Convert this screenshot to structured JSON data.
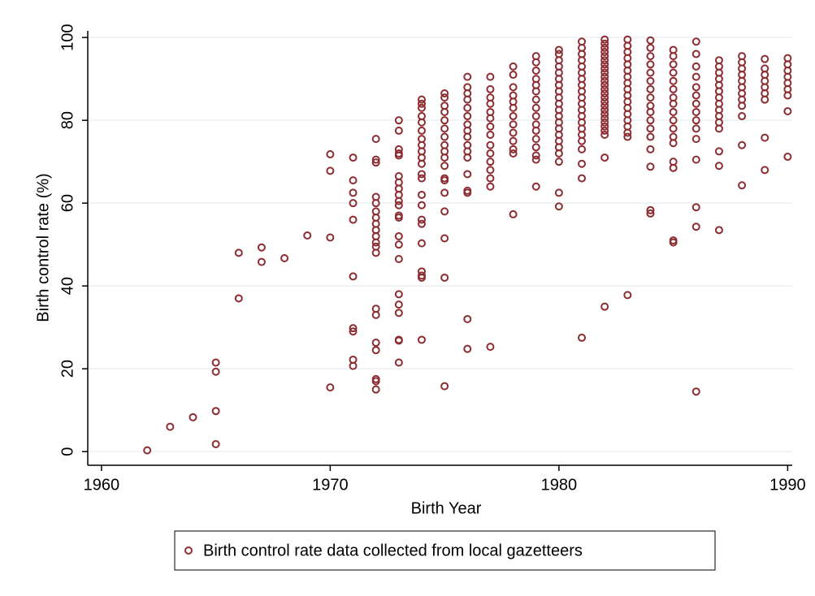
{
  "chart_data": {
    "type": "scatter",
    "x_label": "Birth Year",
    "y_label": "Birth control rate (%)",
    "xlim": [
      1959.4,
      1990.2
    ],
    "ylim": [
      -3.3,
      101.6
    ],
    "xticks": [
      1960,
      1970,
      1980,
      1990
    ],
    "yticks": [
      0,
      20,
      40,
      60,
      80,
      100
    ],
    "grid": true,
    "legend": "bottom",
    "x": [
      1962,
      1963,
      1964,
      1965,
      1965,
      1965,
      1965,
      1966,
      1966,
      1967,
      1967,
      1968,
      1969,
      1970,
      1970,
      1970,
      1970,
      1971,
      1971,
      1971,
      1971,
      1971,
      1971,
      1971,
      1971,
      1971,
      1971,
      1972,
      1972,
      1972,
      1972,
      1972,
      1972,
      1972,
      1972,
      1972,
      1972,
      1972,
      1972,
      1972,
      1972,
      1972,
      1972,
      1972,
      1972,
      1972,
      1972,
      1973,
      1973,
      1973,
      1973,
      1973,
      1973,
      1973,
      1973,
      1973,
      1973,
      1973,
      1973,
      1973,
      1973,
      1973,
      1973,
      1973,
      1973,
      1973,
      1973,
      1973,
      1973,
      1974,
      1974,
      1974,
      1974,
      1974,
      1974,
      1974,
      1974,
      1974,
      1974,
      1974,
      1974,
      1974,
      1974,
      1974,
      1974,
      1974,
      1974,
      1974,
      1974,
      1974,
      1974,
      1975,
      1975,
      1975,
      1975,
      1975,
      1975,
      1975,
      1975,
      1975,
      1975,
      1975,
      1975,
      1975,
      1975,
      1975,
      1975,
      1975,
      1975,
      1976,
      1976,
      1976,
      1976,
      1976,
      1976,
      1976,
      1976,
      1976,
      1976,
      1976,
      1976,
      1976,
      1976,
      1976,
      1976,
      1976,
      1977,
      1977,
      1977,
      1977,
      1977,
      1977,
      1977,
      1977,
      1977,
      1977,
      1977,
      1977,
      1977,
      1977,
      1977,
      1978,
      1978,
      1978,
      1978,
      1978,
      1978,
      1978,
      1978,
      1978,
      1978,
      1978,
      1978,
      1978,
      1979,
      1979,
      1979,
      1979,
      1979,
      1979,
      1979,
      1979,
      1979,
      1979,
      1979,
      1979,
      1979,
      1979,
      1979,
      1979,
      1980,
      1980,
      1980,
      1980,
      1980,
      1980,
      1980,
      1980,
      1980,
      1980,
      1980,
      1980,
      1980,
      1980,
      1980,
      1980,
      1980,
      1980,
      1980,
      1980,
      1980,
      1981,
      1981,
      1981,
      1981,
      1981,
      1981,
      1981,
      1981,
      1981,
      1981,
      1981,
      1981,
      1981,
      1981,
      1981,
      1981,
      1981,
      1981,
      1981,
      1981,
      1981,
      1982,
      1982,
      1982,
      1982,
      1982,
      1982,
      1982,
      1982,
      1982,
      1982,
      1982,
      1982,
      1982,
      1982,
      1982,
      1982,
      1982,
      1982,
      1982,
      1982,
      1982,
      1982,
      1982,
      1982,
      1982,
      1982,
      1983,
      1983,
      1983,
      1983,
      1983,
      1983,
      1983,
      1983,
      1983,
      1983,
      1983,
      1983,
      1983,
      1983,
      1983,
      1983,
      1983,
      1983,
      1984,
      1984,
      1984,
      1984,
      1984,
      1984,
      1984,
      1984,
      1984,
      1984,
      1984,
      1984,
      1984,
      1984,
      1984,
      1984,
      1984,
      1985,
      1985,
      1985,
      1985,
      1985,
      1985,
      1985,
      1985,
      1985,
      1985,
      1985,
      1985,
      1985,
      1985,
      1985,
      1985,
      1985,
      1986,
      1986,
      1986,
      1986,
      1986,
      1986,
      1986,
      1986,
      1986,
      1986,
      1986,
      1986,
      1986,
      1986,
      1986,
      1987,
      1987,
      1987,
      1987,
      1987,
      1987,
      1987,
      1987,
      1987,
      1987,
      1987,
      1987,
      1987,
      1987,
      1987,
      1988,
      1988,
      1988,
      1988,
      1988,
      1988,
      1988,
      1988,
      1988,
      1988,
      1988,
      1988,
      1989,
      1989,
      1989,
      1989,
      1989,
      1989,
      1989,
      1989,
      1989,
      1990,
      1990,
      1990,
      1990,
      1990,
      1990,
      1990,
      1990,
      1990
    ],
    "series": [
      {
        "name": "Birth control rate data collected from local gazetteers",
        "color": "#8c2d32",
        "values": [
          0.3,
          6,
          8.3,
          21.5,
          19.3,
          9.8,
          1.8,
          48,
          37,
          49.3,
          45.8,
          46.7,
          52.2,
          71.8,
          67.8,
          51.7,
          15.5,
          71,
          65.5,
          62.5,
          60,
          56,
          42.3,
          29.8,
          29,
          22.2,
          20.7,
          75.5,
          70.5,
          69.8,
          61.5,
          60,
          58,
          56.5,
          55,
          53.5,
          52,
          50.5,
          49.5,
          48,
          34.5,
          33,
          26.3,
          24.5,
          17.5,
          17,
          15,
          80,
          77.5,
          73,
          72,
          71.5,
          66.5,
          65,
          63.5,
          62,
          60.5,
          59.5,
          57,
          56.5,
          52,
          50,
          46.5,
          38,
          35.5,
          33.5,
          27,
          26.8,
          21.5,
          85,
          84,
          83,
          81,
          79.5,
          77.5,
          75.5,
          74,
          72.5,
          71,
          69.5,
          67,
          66,
          62,
          59.5,
          56,
          55,
          50.3,
          43.5,
          42.5,
          42,
          27,
          86.5,
          85.5,
          83.5,
          82,
          80,
          78,
          76,
          74,
          72.5,
          71,
          69,
          66,
          65.5,
          62.5,
          58,
          51.5,
          42,
          15.8,
          90.5,
          88,
          86.5,
          85,
          83,
          81,
          79,
          77.5,
          76,
          74,
          72.5,
          71,
          67,
          63,
          62.5,
          32,
          24.8,
          90.5,
          87.5,
          85.5,
          84,
          82,
          80.5,
          78.5,
          76.5,
          74,
          72,
          70,
          68,
          66,
          64,
          25.3,
          93,
          91,
          88,
          86,
          84.5,
          83,
          81,
          79,
          77,
          75,
          73,
          72,
          57.3,
          95.5,
          94,
          92,
          90,
          88.5,
          87,
          85,
          83,
          81,
          79,
          77.5,
          75.5,
          73.5,
          71.5,
          70.5,
          64,
          97,
          96,
          94.5,
          93,
          91.5,
          90,
          88.5,
          87,
          85.5,
          84,
          82.5,
          81,
          79.5,
          78,
          76.5,
          75,
          73.5,
          72,
          70,
          62.5,
          59.2,
          99,
          97.5,
          96,
          94.5,
          93,
          91.5,
          90,
          88.5,
          87,
          85.5,
          84,
          82.5,
          81,
          79.5,
          78,
          76.5,
          75,
          73,
          69.5,
          66,
          27.5,
          99.5,
          98.5,
          97.5,
          96.5,
          95.5,
          94.5,
          93.5,
          92.5,
          91.5,
          90.5,
          89.5,
          88.5,
          87.5,
          86.5,
          85.5,
          84.5,
          83.5,
          82.5,
          81.5,
          80.5,
          79.5,
          78.5,
          77.5,
          76.5,
          71,
          35,
          99.5,
          98,
          96.5,
          95,
          93.5,
          92,
          90.5,
          89,
          87.5,
          86,
          84.5,
          83,
          81.5,
          80,
          78.5,
          77,
          76,
          37.8,
          99.3,
          97.5,
          95.5,
          93.5,
          91.5,
          89.5,
          87.5,
          85.5,
          83.5,
          82,
          80,
          78,
          76,
          73,
          68.8,
          58.3,
          57.5,
          97,
          95.5,
          93.5,
          91.5,
          89.5,
          87.5,
          85.5,
          84,
          82,
          80,
          78,
          76,
          74.5,
          70,
          68.5,
          51,
          50.5,
          99,
          96,
          93,
          90.5,
          88,
          86,
          84,
          82,
          80,
          78,
          75.5,
          70.5,
          59,
          54.3,
          14.5,
          94.5,
          93,
          91.5,
          90,
          88.5,
          87,
          85.5,
          84,
          82.5,
          81,
          79.5,
          78,
          72.5,
          69,
          53.5,
          95.5,
          94,
          92.5,
          91,
          89.5,
          88,
          86.5,
          85,
          83.5,
          81,
          74,
          64.3,
          94.8,
          92.5,
          91,
          89.5,
          88,
          86.5,
          85,
          75.8,
          68,
          95,
          93.5,
          92,
          90.5,
          89,
          87.5,
          86,
          82.2,
          71.2
        ]
      }
    ]
  }
}
